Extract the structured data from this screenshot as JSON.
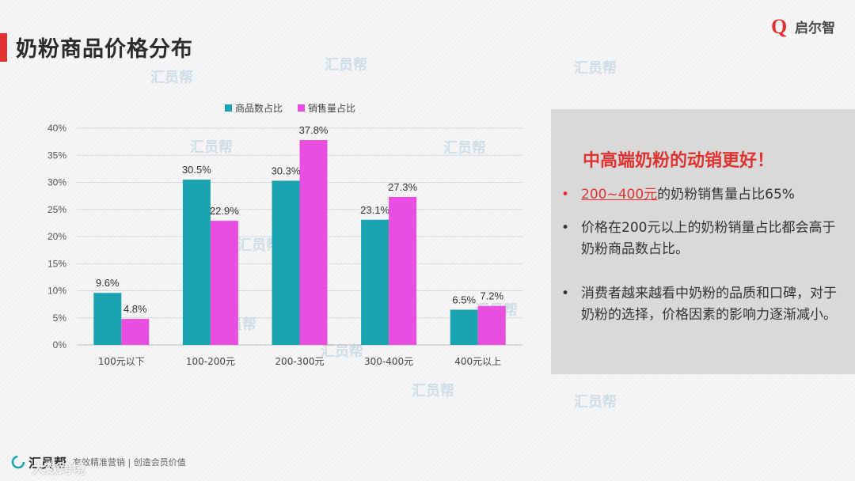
{
  "page": {
    "title": "奶粉商品价格分布",
    "brand_logo": "启尔智",
    "brand_logo_letter": "Q",
    "watermark": "汇员帮",
    "footer_brand": "汇员帮",
    "footer_slogan": "有效精准营销 | 创造会员价值",
    "footer_source": "大数跨境"
  },
  "colors": {
    "accent": "#e0322f",
    "series_teal": "#1aa3b0",
    "series_magenta": "#e94ee0"
  },
  "chart_data": {
    "type": "bar",
    "categories": [
      "100元以下",
      "100-200元",
      "200-300元",
      "300-400元",
      "400元以上"
    ],
    "series": [
      {
        "name": "商品数占比",
        "values": [
          9.6,
          30.5,
          30.3,
          23.1,
          6.5
        ],
        "labels": [
          "9.6%",
          "30.5%",
          "30.3%",
          "23.1%",
          "6.5%"
        ],
        "color": "#1aa3b0"
      },
      {
        "name": "销售量占比",
        "values": [
          4.8,
          22.9,
          37.8,
          27.3,
          7.2
        ],
        "labels": [
          "4.8%",
          "22.9%",
          "37.8%",
          "27.3%",
          "7.2%"
        ],
        "color": "#e94ee0"
      }
    ],
    "ylim": [
      0,
      40
    ],
    "yticks": [
      0,
      5,
      10,
      15,
      20,
      25,
      30,
      35,
      40
    ],
    "ytick_labels": [
      "0%",
      "5%",
      "10%",
      "15%",
      "20%",
      "25%",
      "30%",
      "35%",
      "40%"
    ],
    "grid": true,
    "legend_position": "top"
  },
  "panel": {
    "heading": "中高端奶粉的动销更好！",
    "bullets": [
      {
        "highlight": "200~400元",
        "text": "的奶粉销售量占比65%"
      },
      {
        "text": "价格在200元以上的奶粉销量占比都会高于奶粉商品数占比。"
      },
      {
        "text": "消费者越来越看中奶粉的品质和口碑，对于奶粉的选择，价格因素的影响力逐渐减小。"
      }
    ],
    "bullet_marker": "•"
  }
}
